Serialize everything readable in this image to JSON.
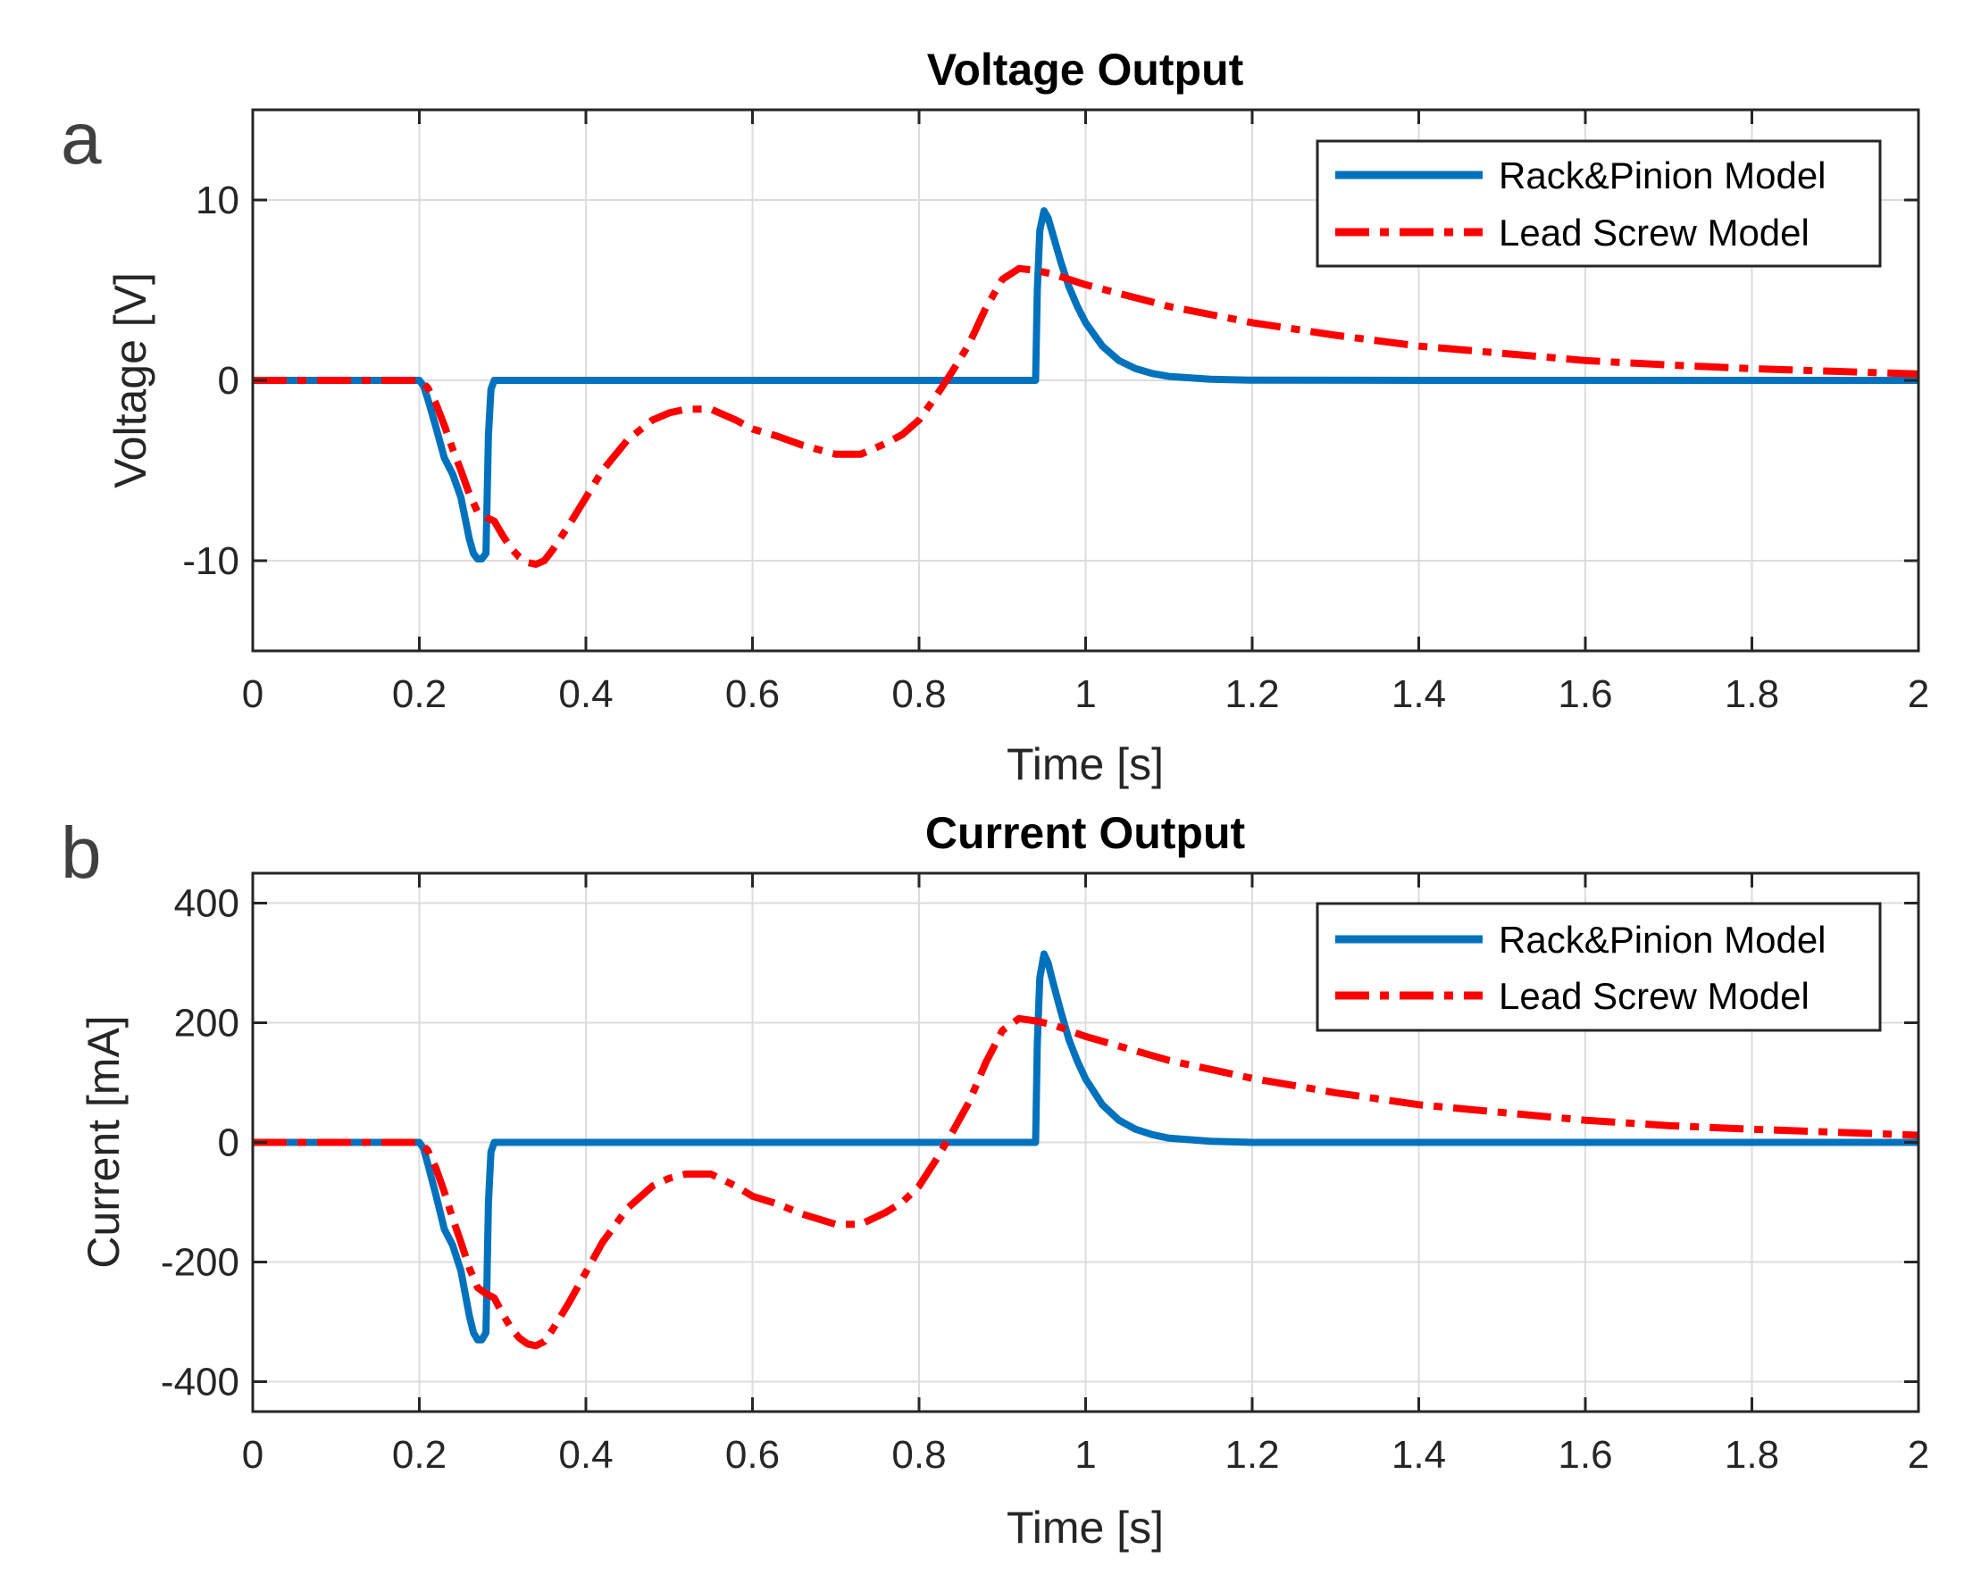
{
  "chart_data": [
    {
      "panel": "a",
      "type": "line",
      "title": "Voltage Output",
      "xlabel": "Time [s]",
      "ylabel": "Voltage [V]",
      "xlim": [
        0,
        2
      ],
      "ylim": [
        -15,
        15
      ],
      "xticks": [
        0,
        0.2,
        0.4,
        0.6,
        0.8,
        1,
        1.2,
        1.4,
        1.6,
        1.8,
        2
      ],
      "xtick_labels": [
        "0",
        "0.2",
        "0.4",
        "0.6",
        "0.8",
        "1",
        "1.2",
        "1.4",
        "1.6",
        "1.8",
        "2"
      ],
      "yticks": [
        -10,
        0,
        10
      ],
      "ytick_labels": [
        "-10",
        "0",
        "10"
      ],
      "grid": true,
      "legend_position": "top-right",
      "series": [
        {
          "name": "Rack&Pinion Model",
          "color": "#0072BD",
          "style": "solid",
          "x": [
            0,
            0.2,
            0.205,
            0.21,
            0.22,
            0.23,
            0.24,
            0.25,
            0.26,
            0.265,
            0.27,
            0.275,
            0.28,
            0.283,
            0.286,
            0.29,
            0.3,
            0.5,
            0.7,
            0.9,
            0.94,
            0.942,
            0.945,
            0.95,
            0.955,
            0.96,
            0.97,
            0.98,
            0.99,
            1.0,
            1.02,
            1.04,
            1.06,
            1.08,
            1.1,
            1.15,
            1.2,
            1.4,
            1.6,
            1.8,
            2.0
          ],
          "values": [
            0,
            0,
            -0.3,
            -1.0,
            -2.6,
            -4.3,
            -5.2,
            -6.5,
            -8.8,
            -9.6,
            -9.9,
            -9.9,
            -9.6,
            -3.0,
            -0.5,
            0,
            0,
            0,
            0,
            0,
            0,
            5.0,
            8.3,
            9.4,
            9.0,
            8.2,
            6.6,
            5.2,
            4.1,
            3.2,
            1.9,
            1.1,
            0.65,
            0.38,
            0.22,
            0.06,
            0.01,
            0,
            0,
            0,
            0
          ]
        },
        {
          "name": "Lead Screw Model",
          "color": "#FF0000",
          "style": "dashdot",
          "x": [
            0,
            0.2,
            0.21,
            0.22,
            0.23,
            0.24,
            0.25,
            0.26,
            0.27,
            0.28,
            0.29,
            0.3,
            0.31,
            0.32,
            0.33,
            0.34,
            0.35,
            0.36,
            0.38,
            0.4,
            0.42,
            0.45,
            0.48,
            0.5,
            0.52,
            0.55,
            0.58,
            0.6,
            0.63,
            0.66,
            0.7,
            0.73,
            0.76,
            0.78,
            0.8,
            0.82,
            0.84,
            0.86,
            0.88,
            0.9,
            0.92,
            0.94,
            0.96,
            1.0,
            1.1,
            1.2,
            1.3,
            1.4,
            1.5,
            1.6,
            1.7,
            1.8,
            1.9,
            2.0
          ],
          "values": [
            0,
            0,
            -0.4,
            -1.3,
            -2.5,
            -3.8,
            -5.0,
            -6.3,
            -7.3,
            -7.6,
            -7.8,
            -8.6,
            -9.3,
            -9.8,
            -10.1,
            -10.2,
            -10.0,
            -9.4,
            -8.0,
            -6.5,
            -5.0,
            -3.3,
            -2.2,
            -1.8,
            -1.6,
            -1.6,
            -2.2,
            -2.7,
            -3.1,
            -3.6,
            -4.1,
            -4.1,
            -3.5,
            -3.0,
            -2.2,
            -0.9,
            0.5,
            2.0,
            4.0,
            5.6,
            6.2,
            6.1,
            5.9,
            5.3,
            4.1,
            3.2,
            2.5,
            1.9,
            1.5,
            1.1,
            0.85,
            0.65,
            0.5,
            0.35
          ]
        }
      ]
    },
    {
      "panel": "b",
      "type": "line",
      "title": "Current Output",
      "xlabel": "Time [s]",
      "ylabel": "Current [mA]",
      "xlim": [
        0,
        2
      ],
      "ylim": [
        -450,
        450
      ],
      "xticks": [
        0,
        0.2,
        0.4,
        0.6,
        0.8,
        1,
        1.2,
        1.4,
        1.6,
        1.8,
        2
      ],
      "xtick_labels": [
        "0",
        "0.2",
        "0.4",
        "0.6",
        "0.8",
        "1",
        "1.2",
        "1.4",
        "1.6",
        "1.8",
        "2"
      ],
      "yticks": [
        -400,
        -200,
        0,
        200,
        400
      ],
      "ytick_labels": [
        "-400",
        "-200",
        "0",
        "200",
        "400"
      ],
      "grid": true,
      "legend_position": "top-right",
      "series": [
        {
          "name": "Rack&Pinion Model",
          "color": "#0072BD",
          "style": "solid",
          "x": [
            0,
            0.2,
            0.205,
            0.21,
            0.22,
            0.23,
            0.24,
            0.25,
            0.26,
            0.265,
            0.27,
            0.275,
            0.28,
            0.283,
            0.286,
            0.29,
            0.3,
            0.5,
            0.7,
            0.9,
            0.94,
            0.942,
            0.945,
            0.95,
            0.955,
            0.96,
            0.97,
            0.98,
            0.99,
            1.0,
            1.02,
            1.04,
            1.06,
            1.08,
            1.1,
            1.15,
            1.2,
            1.4,
            1.6,
            1.8,
            2.0
          ],
          "values": [
            0,
            0,
            -10,
            -35,
            -88,
            -145,
            -172,
            -215,
            -290,
            -318,
            -330,
            -330,
            -318,
            -100,
            -16,
            0,
            0,
            0,
            0,
            0,
            0,
            165,
            275,
            315,
            300,
            272,
            220,
            172,
            136,
            106,
            63,
            37,
            22,
            13,
            7,
            2,
            0,
            0,
            0,
            0,
            0
          ]
        },
        {
          "name": "Lead Screw Model",
          "color": "#FF0000",
          "style": "dashdot",
          "x": [
            0,
            0.2,
            0.21,
            0.22,
            0.23,
            0.24,
            0.25,
            0.26,
            0.27,
            0.28,
            0.29,
            0.3,
            0.31,
            0.32,
            0.33,
            0.34,
            0.35,
            0.36,
            0.38,
            0.4,
            0.42,
            0.45,
            0.48,
            0.5,
            0.52,
            0.55,
            0.58,
            0.6,
            0.63,
            0.66,
            0.7,
            0.73,
            0.76,
            0.78,
            0.8,
            0.82,
            0.84,
            0.86,
            0.88,
            0.9,
            0.92,
            0.94,
            0.96,
            1.0,
            1.1,
            1.2,
            1.3,
            1.4,
            1.5,
            1.6,
            1.7,
            1.8,
            1.9,
            2.0
          ],
          "values": [
            0,
            0,
            -13,
            -43,
            -83,
            -127,
            -167,
            -210,
            -243,
            -253,
            -260,
            -287,
            -310,
            -327,
            -337,
            -340,
            -333,
            -313,
            -267,
            -217,
            -167,
            -110,
            -73,
            -60,
            -53,
            -53,
            -73,
            -90,
            -103,
            -120,
            -137,
            -137,
            -117,
            -100,
            -73,
            -30,
            17,
            67,
            133,
            187,
            207,
            203,
            197,
            177,
            137,
            107,
            83,
            63,
            50,
            37,
            28,
            22,
            17,
            12
          ]
        }
      ]
    }
  ]
}
